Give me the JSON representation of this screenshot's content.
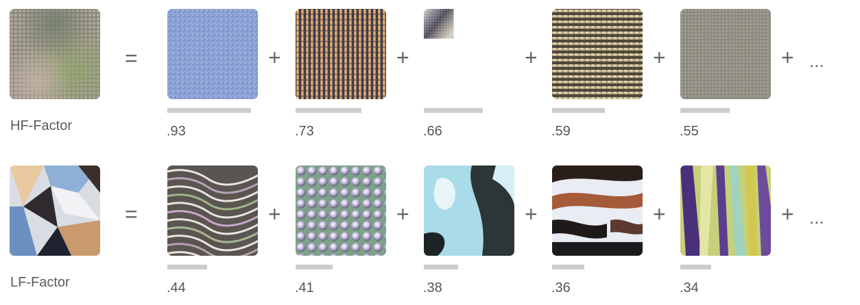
{
  "rows": [
    {
      "label": "HF-Factor",
      "equals": "=",
      "plus": "+",
      "ellipsis": "...",
      "components": [
        {
          "value": ".93",
          "weight": 0.93,
          "texture": "blue-mesh-icon"
        },
        {
          "value": ".73",
          "weight": 0.73,
          "texture": "orange-vertical-stripes-icon"
        },
        {
          "value": ".66",
          "weight": 0.66,
          "texture": "gray-diagonal-waves-icon"
        },
        {
          "value": ".59",
          "weight": 0.59,
          "texture": "tan-horizontal-weave-icon"
        },
        {
          "value": ".55",
          "weight": 0.55,
          "texture": "gray-fine-noise-icon"
        }
      ]
    },
    {
      "label": "LF-Factor",
      "equals": "=",
      "plus": "+",
      "ellipsis": "...",
      "components": [
        {
          "value": ".44",
          "weight": 0.44,
          "texture": "wavy-lines-icon"
        },
        {
          "value": ".41",
          "weight": 0.41,
          "texture": "bubbles-icon"
        },
        {
          "value": ".38",
          "weight": 0.38,
          "texture": "cyan-blobs-icon"
        },
        {
          "value": ".36",
          "weight": 0.36,
          "texture": "brown-streaks-icon"
        },
        {
          "value": ".34",
          "weight": 0.34,
          "texture": "rainbow-stripes-icon"
        }
      ]
    }
  ]
}
